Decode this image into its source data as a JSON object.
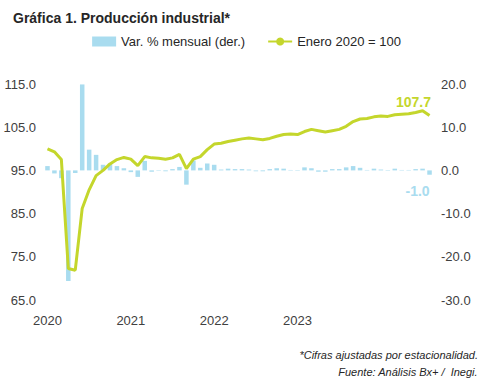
{
  "chart_data": {
    "type": "bar_line",
    "title": "Gráfica 1. Producción industrial*",
    "notes": [
      "*Cifras ajustadas por estacionalidad.",
      "Fuente: Análisis Bx+ /  Inegi."
    ],
    "categories": [
      "2020",
      null,
      null,
      null,
      null,
      null,
      null,
      null,
      null,
      null,
      null,
      null,
      "2021",
      null,
      null,
      null,
      null,
      null,
      null,
      null,
      null,
      null,
      null,
      null,
      "2022",
      null,
      null,
      null,
      null,
      null,
      null,
      null,
      null,
      null,
      null,
      null,
      "2023",
      null,
      null,
      null,
      null,
      null,
      null,
      null,
      null,
      null,
      null,
      null,
      null,
      null,
      null,
      null,
      null,
      null,
      null,
      null
    ],
    "series": [
      {
        "name": "Var. % mensual (der.)",
        "type": "bar",
        "axis": "y2",
        "color": "#a9dcef",
        "values": [
          1.0,
          -0.7,
          -1.8,
          -25.6,
          -0.6,
          19.9,
          4.8,
          3.6,
          1.3,
          1.6,
          1.0,
          0.5,
          -0.4,
          -1.5,
          2.2,
          -0.3,
          -0.1,
          -0.2,
          0.3,
          0.8,
          -3.3,
          2.3,
          0.6,
          1.6,
          1.3,
          0.2,
          0.4,
          0.3,
          0.3,
          0.2,
          -0.2,
          -0.2,
          0.3,
          0.5,
          0.4,
          0.1,
          -0.1,
          0.7,
          0.5,
          -0.3,
          -0.3,
          0.3,
          0.3,
          0.7,
          1.0,
          0.6,
          0.1,
          0.4,
          0.2,
          -0.1,
          0.4,
          0.1,
          0.1,
          0.3,
          0.4,
          -1.0
        ],
        "value_labels": [
          null,
          null,
          null,
          null,
          null,
          null,
          null,
          null,
          null,
          null,
          null,
          null,
          null,
          null,
          null,
          null,
          null,
          null,
          null,
          null,
          null,
          null,
          null,
          null,
          null,
          null,
          null,
          null,
          null,
          null,
          null,
          null,
          null,
          null,
          null,
          null,
          null,
          null,
          null,
          null,
          null,
          null,
          null,
          null,
          null,
          null,
          null,
          null,
          null,
          null,
          null,
          null,
          null,
          null,
          null,
          "-1.0"
        ]
      },
      {
        "name": "Enero 2020 = 100",
        "type": "line",
        "color": "#c4d62c",
        "values": [
          100.0,
          99.3,
          97.5,
          72.3,
          71.9,
          86.2,
          90.5,
          93.8,
          95.0,
          96.5,
          97.5,
          98.0,
          97.6,
          96.1,
          98.2,
          97.9,
          97.8,
          97.6,
          97.9,
          98.7,
          95.4,
          97.6,
          98.2,
          99.8,
          101.1,
          101.3,
          101.7,
          102.0,
          102.3,
          102.5,
          102.3,
          102.1,
          102.4,
          102.9,
          103.3,
          103.4,
          103.3,
          104.0,
          104.5,
          104.2,
          103.9,
          104.2,
          104.5,
          105.2,
          106.3,
          106.9,
          107.0,
          107.4,
          107.6,
          107.5,
          107.9,
          108.0,
          108.1,
          108.4,
          108.8,
          107.7
        ],
        "value_labels": [
          null,
          null,
          null,
          null,
          null,
          null,
          null,
          null,
          null,
          null,
          null,
          null,
          null,
          null,
          null,
          null,
          null,
          null,
          null,
          null,
          null,
          null,
          null,
          null,
          null,
          null,
          null,
          null,
          null,
          null,
          null,
          null,
          null,
          null,
          null,
          null,
          null,
          null,
          null,
          null,
          null,
          null,
          null,
          null,
          null,
          null,
          null,
          null,
          null,
          null,
          null,
          null,
          null,
          null,
          null,
          "107.7"
        ]
      }
    ],
    "ylim": [
      65,
      115
    ],
    "yticks": [
      {
        "value": 65,
        "label": "65.0"
      },
      {
        "value": 75,
        "label": "75.0"
      },
      {
        "value": 85,
        "label": "85.0"
      },
      {
        "value": 95,
        "label": "95.0"
      },
      {
        "value": 105,
        "label": "105.0"
      },
      {
        "value": 115,
        "label": "115.0"
      }
    ],
    "y2lim": [
      -30,
      20
    ],
    "y2ticks": [
      {
        "value": -30,
        "label": "-30.0"
      },
      {
        "value": -20,
        "label": "-20.0"
      },
      {
        "value": -10,
        "label": "-10.0"
      },
      {
        "value": 0,
        "label": "0.0"
      },
      {
        "value": 10,
        "label": "10.0"
      },
      {
        "value": 20,
        "label": "20.0"
      }
    ],
    "grid": false,
    "legend": "top"
  }
}
